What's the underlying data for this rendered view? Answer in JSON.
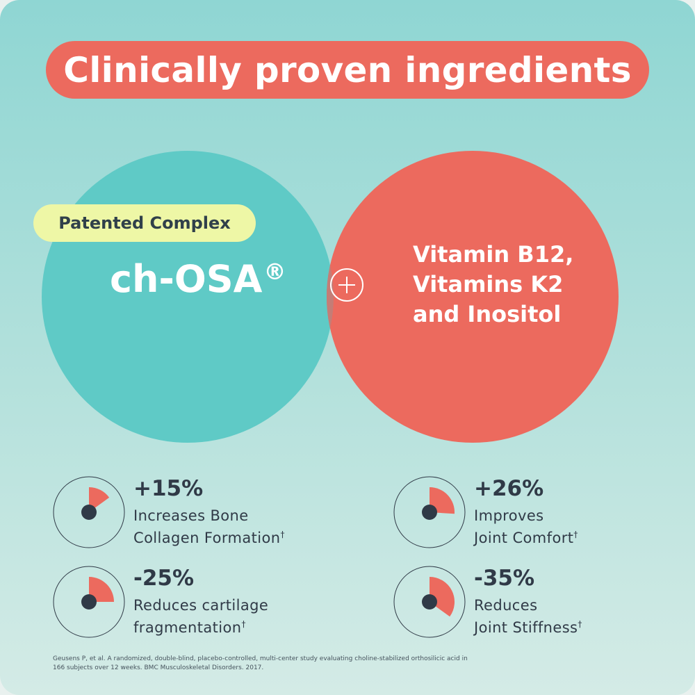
{
  "title": "Clinically proven ingredients",
  "badge": "Patented Complex",
  "left_ingredient": {
    "name": "ch-OSA",
    "mark": "®"
  },
  "plus_symbol": "+",
  "right_ingredients": [
    "Vitamin B12,",
    "Vitamins K2",
    "and Inositol"
  ],
  "stats": [
    {
      "value": "+15%",
      "line1": "Increases Bone",
      "line2": "Collagen Formation",
      "mark": "†",
      "fraction": 0.15
    },
    {
      "value": "+26%",
      "line1": "Improves",
      "line2": "Joint Comfort",
      "mark": "†",
      "fraction": 0.26
    },
    {
      "value": "-25%",
      "line1": "Reduces cartilage",
      "line2": "fragmentation",
      "mark": "†",
      "fraction": 0.25
    },
    {
      "value": "-35%",
      "line1": "Reduces",
      "line2": "Joint Stiffness",
      "mark": "†",
      "fraction": 0.35
    }
  ],
  "footnote": "Geusens P, et al. A randomized, double-blind, placebo-controlled, multi-center study evaluating choline-stabilized orthosilicic acid in 166 subjects over 12 weeks. BMC Musculoskeletal Disorders. 2017.",
  "colors": {
    "teal": "#5fcac6",
    "coral": "#ec6a5e",
    "overlap": "#c47d76",
    "badge": "#eef7a6",
    "dark": "#303a47"
  }
}
